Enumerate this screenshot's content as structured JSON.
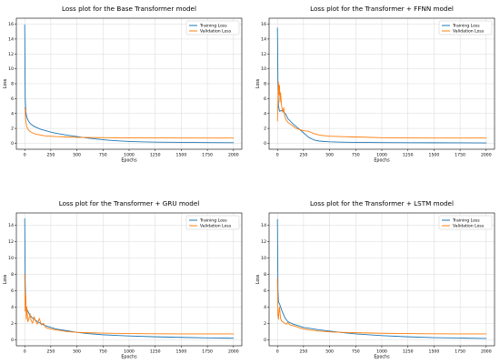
{
  "chart_data": [
    {
      "type": "line",
      "title": "Loss plot for the Base Transformer model",
      "xlabel": "Epochs",
      "ylabel": "Loss",
      "xlim": [
        -80,
        2080
      ],
      "ylim": [
        -0.8,
        16.8
      ],
      "xticks": [
        0,
        250,
        500,
        750,
        1000,
        1250,
        1500,
        1750,
        2000
      ],
      "yticks": [
        0,
        2,
        4,
        6,
        8,
        10,
        12,
        14,
        16
      ],
      "grid": true,
      "legend_position": "top-right",
      "series": [
        {
          "name": "Training Loss",
          "color": "#1f77b4",
          "x": [
            0,
            5,
            10,
            20,
            35,
            50,
            75,
            100,
            150,
            200,
            250,
            300,
            400,
            500,
            600,
            700,
            800,
            900,
            1000,
            1100,
            1250,
            1500,
            1750,
            2000
          ],
          "y": [
            15.9,
            6.0,
            4.2,
            3.5,
            3.0,
            2.7,
            2.4,
            2.2,
            1.9,
            1.7,
            1.5,
            1.35,
            1.1,
            0.9,
            0.7,
            0.55,
            0.42,
            0.32,
            0.25,
            0.2,
            0.15,
            0.12,
            0.1,
            0.08
          ]
        },
        {
          "name": "Validation Loss",
          "color": "#ff7f0e",
          "x": [
            0,
            5,
            10,
            20,
            35,
            50,
            75,
            100,
            150,
            200,
            250,
            300,
            400,
            500,
            600,
            700,
            800,
            900,
            1000,
            1250,
            1500,
            1750,
            2000
          ],
          "y": [
            4.8,
            4.5,
            3.0,
            2.2,
            1.8,
            1.6,
            1.4,
            1.25,
            1.1,
            1.0,
            0.95,
            0.9,
            0.85,
            0.8,
            0.78,
            0.76,
            0.75,
            0.74,
            0.73,
            0.72,
            0.71,
            0.7,
            0.7
          ]
        }
      ]
    },
    {
      "type": "line",
      "title": "Loss plot for the Transformer + FFNN model",
      "xlabel": "Epochs",
      "ylabel": "Loss",
      "xlim": [
        -80,
        2080
      ],
      "ylim": [
        -0.8,
        16.8
      ],
      "xticks": [
        0,
        250,
        500,
        750,
        1000,
        1250,
        1500,
        1750,
        2000
      ],
      "yticks": [
        0,
        2,
        4,
        6,
        8,
        10,
        12,
        14,
        16
      ],
      "grid": true,
      "legend_position": "top-right",
      "series": [
        {
          "name": "Training Loss",
          "color": "#1f77b4",
          "x": [
            0,
            5,
            10,
            20,
            40,
            60,
            80,
            100,
            150,
            200,
            250,
            300,
            350,
            400,
            500,
            600,
            750,
            1000,
            1250,
            1500,
            1750,
            2000
          ],
          "y": [
            15.5,
            8.0,
            5.0,
            4.3,
            4.4,
            4.2,
            3.9,
            3.3,
            2.6,
            2.0,
            1.4,
            0.8,
            0.45,
            0.3,
            0.2,
            0.15,
            0.12,
            0.1,
            0.08,
            0.07,
            0.06,
            0.05
          ]
        },
        {
          "name": "Validation Loss",
          "color": "#ff7f0e",
          "x": [
            0,
            5,
            10,
            15,
            20,
            25,
            30,
            40,
            50,
            60,
            70,
            80,
            100,
            120,
            150,
            180,
            200,
            250,
            300,
            350,
            400,
            500,
            600,
            750,
            1000,
            1250,
            1500,
            1750,
            2000
          ],
          "y": [
            3.0,
            5.5,
            8.2,
            6.5,
            7.8,
            5.5,
            6.8,
            5.0,
            4.2,
            4.8,
            3.6,
            3.2,
            2.8,
            2.6,
            2.3,
            2.0,
            1.9,
            1.7,
            1.6,
            1.3,
            1.1,
            0.95,
            0.9,
            0.85,
            0.75,
            0.72,
            0.7,
            0.7,
            0.7
          ]
        }
      ]
    },
    {
      "type": "line",
      "title": "Loss plot for the Transformer + GRU model",
      "xlabel": "Epochs",
      "ylabel": "Loss",
      "xlim": [
        -80,
        2080
      ],
      "ylim": [
        -0.75,
        15.5
      ],
      "xticks": [
        0,
        250,
        500,
        750,
        1000,
        1250,
        1500,
        1750,
        2000
      ],
      "yticks": [
        0,
        2,
        4,
        6,
        8,
        10,
        12,
        14
      ],
      "grid": true,
      "legend_position": "top-right",
      "series": [
        {
          "name": "Training Loss",
          "color": "#1f77b4",
          "x": [
            0,
            5,
            10,
            20,
            30,
            40,
            50,
            70,
            100,
            150,
            200,
            250,
            300,
            400,
            500,
            600,
            750,
            1000,
            1250,
            1500,
            1750,
            2000
          ],
          "y": [
            14.8,
            7.0,
            4.0,
            3.7,
            3.5,
            3.2,
            3.0,
            2.7,
            2.4,
            2.0,
            1.7,
            1.5,
            1.3,
            1.1,
            0.9,
            0.75,
            0.6,
            0.45,
            0.35,
            0.28,
            0.22,
            0.18
          ]
        },
        {
          "name": "Validation Loss",
          "color": "#ff7f0e",
          "x": [
            0,
            5,
            10,
            15,
            20,
            25,
            30,
            40,
            50,
            60,
            75,
            90,
            100,
            120,
            140,
            160,
            180,
            200,
            250,
            300,
            400,
            500,
            600,
            750,
            1000,
            1250,
            1500,
            1750,
            2000
          ],
          "y": [
            8.0,
            3.5,
            5.5,
            2.5,
            4.0,
            3.0,
            2.2,
            2.5,
            3.2,
            2.4,
            2.0,
            2.8,
            2.4,
            1.9,
            2.6,
            1.8,
            2.0,
            1.5,
            1.3,
            1.2,
            1.0,
            0.9,
            0.85,
            0.8,
            0.75,
            0.72,
            0.7,
            0.7,
            0.7
          ]
        }
      ]
    },
    {
      "type": "line",
      "title": "Loss plot for the Transformer + LSTM model",
      "xlabel": "Epochs",
      "ylabel": "Loss",
      "xlim": [
        -80,
        2080
      ],
      "ylim": [
        -0.75,
        15.5
      ],
      "xticks": [
        0,
        250,
        500,
        750,
        1000,
        1250,
        1500,
        1750,
        2000
      ],
      "yticks": [
        0,
        2,
        4,
        6,
        8,
        10,
        12,
        14
      ],
      "grid": true,
      "legend_position": "top-right",
      "series": [
        {
          "name": "Training Loss",
          "color": "#1f77b4",
          "x": [
            0,
            5,
            10,
            20,
            30,
            50,
            75,
            100,
            150,
            200,
            250,
            300,
            400,
            500,
            600,
            750,
            1000,
            1250,
            1500,
            1750,
            2000
          ],
          "y": [
            14.7,
            6.0,
            4.6,
            4.4,
            4.0,
            3.3,
            2.6,
            2.2,
            1.9,
            1.7,
            1.5,
            1.4,
            1.2,
            1.05,
            0.9,
            0.7,
            0.5,
            0.35,
            0.25,
            0.2,
            0.15
          ]
        },
        {
          "name": "Validation Loss",
          "color": "#ff7f0e",
          "x": [
            0,
            5,
            10,
            15,
            20,
            30,
            40,
            50,
            70,
            90,
            100,
            120,
            150,
            180,
            200,
            250,
            300,
            400,
            500,
            600,
            750,
            1000,
            1250,
            1500,
            1750,
            2000
          ],
          "y": [
            7.5,
            3.0,
            2.5,
            3.5,
            4.0,
            2.6,
            2.3,
            2.2,
            2.0,
            1.9,
            2.1,
            1.8,
            1.7,
            1.6,
            1.5,
            1.3,
            1.2,
            1.05,
            0.95,
            0.9,
            0.85,
            0.78,
            0.74,
            0.72,
            0.7,
            0.7
          ]
        }
      ]
    }
  ]
}
